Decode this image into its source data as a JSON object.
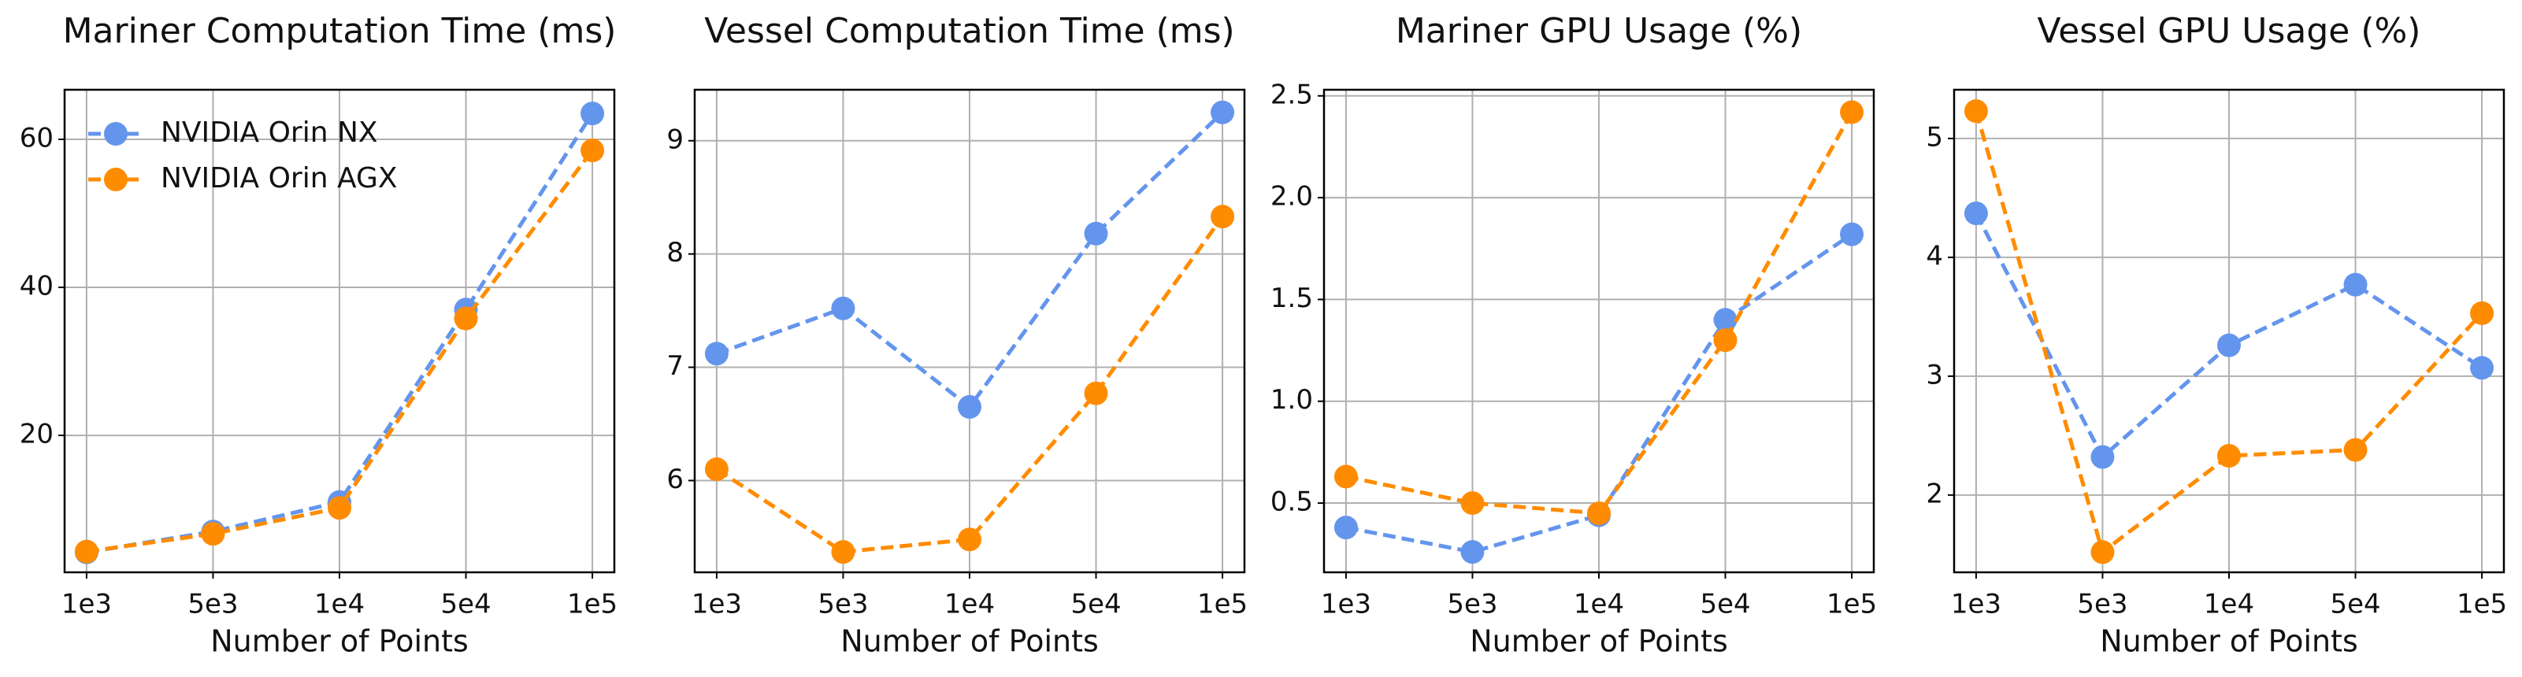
{
  "chart_data": [
    {
      "type": "line",
      "title": "Mariner Computation Time (ms)",
      "xlabel": "Number of Points",
      "categories": [
        "1e3",
        "5e3",
        "1e4",
        "5e4",
        "1e5"
      ],
      "ylim": [
        1.5,
        66.7
      ],
      "yticks": [
        20,
        40,
        60
      ],
      "grid": true,
      "legend": "upper left",
      "series": [
        {
          "name": "NVIDIA Orin NX",
          "color": "#6495ed",
          "values": [
            4.2,
            7.0,
            11.0,
            37.0,
            63.5
          ]
        },
        {
          "name": "NVIDIA Orin AGX",
          "color": "#ff8c00",
          "values": [
            4.3,
            6.7,
            10.2,
            35.8,
            58.5
          ]
        }
      ]
    },
    {
      "type": "line",
      "title": "Vessel Computation Time (ms)",
      "xlabel": "Number of Points",
      "categories": [
        "1e3",
        "5e3",
        "1e4",
        "5e4",
        "1e5"
      ],
      "ylim": [
        5.19,
        9.45
      ],
      "yticks": [
        6,
        7,
        8,
        9
      ],
      "grid": true,
      "series": [
        {
          "color": "#6495ed",
          "values": [
            7.12,
            7.52,
            6.65,
            8.18,
            9.25
          ]
        },
        {
          "color": "#ff8c00",
          "values": [
            6.1,
            5.37,
            5.48,
            6.77,
            8.33
          ]
        }
      ]
    },
    {
      "type": "line",
      "title": "Mariner GPU Usage (%)",
      "xlabel": "Number of Points",
      "categories": [
        "1e3",
        "5e3",
        "1e4",
        "5e4",
        "1e5"
      ],
      "ylim": [
        0.16,
        2.53
      ],
      "yticks": [
        0.5,
        {
          "value": 1,
          "label": "1.0"
        },
        1.5,
        {
          "value": 2,
          "label": "2.0"
        },
        2.5
      ],
      "grid": true,
      "series": [
        {
          "color": "#6495ed",
          "values": [
            0.38,
            0.26,
            0.44,
            1.4,
            1.82
          ]
        },
        {
          "color": "#ff8c00",
          "values": [
            0.63,
            0.5,
            0.45,
            1.3,
            2.42
          ]
        }
      ]
    },
    {
      "type": "line",
      "title": "Vessel GPU Usage (%)",
      "xlabel": "Number of Points",
      "categories": [
        "1e3",
        "5e3",
        "1e4",
        "5e4",
        "1e5"
      ],
      "ylim": [
        1.35,
        5.41
      ],
      "yticks": [
        2,
        3,
        4,
        5
      ],
      "grid": true,
      "series": [
        {
          "color": "#6495ed",
          "values": [
            4.37,
            2.32,
            3.26,
            3.77,
            3.07
          ]
        },
        {
          "color": "#ff8c00",
          "values": [
            5.23,
            1.52,
            2.33,
            2.38,
            3.53
          ]
        }
      ]
    }
  ]
}
